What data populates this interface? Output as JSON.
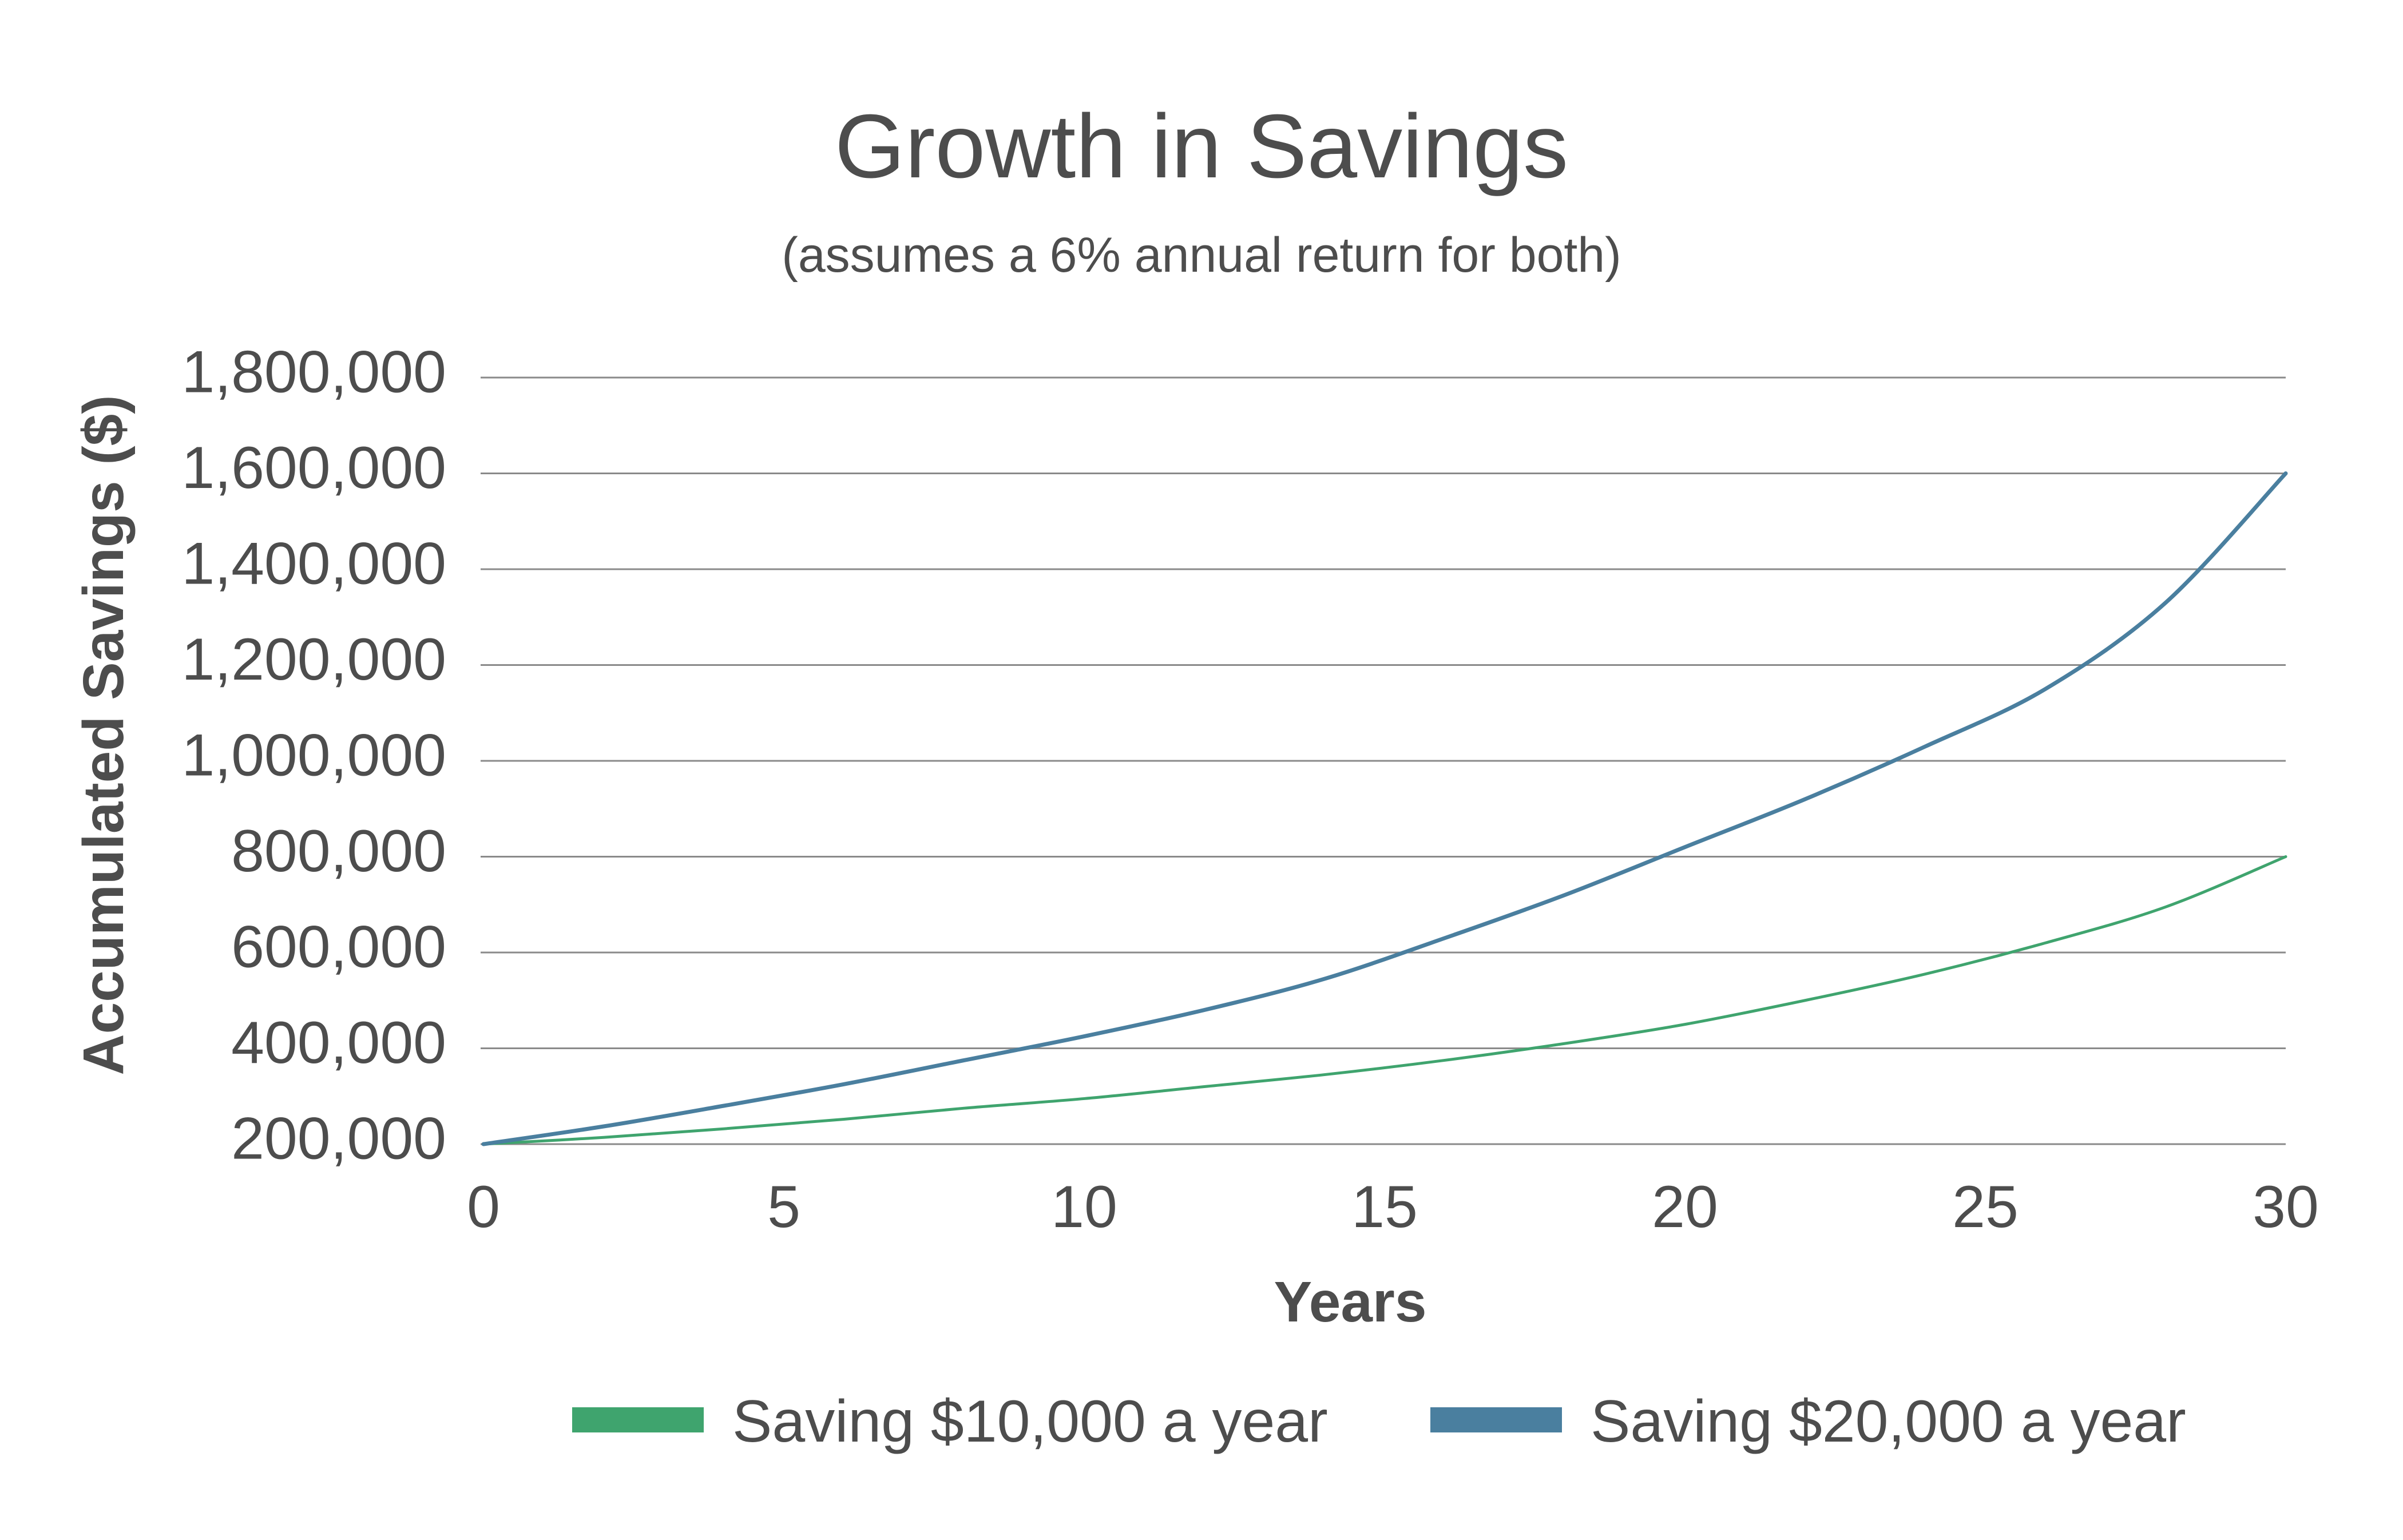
{
  "chart_data": {
    "type": "line",
    "title": "Growth in Savings",
    "subtitle": "(assumes a 6% annual return for both)",
    "xlabel": "Years",
    "ylabel": "Accumulated Savings ($)",
    "xlim": [
      0,
      30
    ],
    "ylim": [
      200000,
      1800000
    ],
    "x_ticks": [
      0,
      5,
      10,
      15,
      20,
      25,
      30
    ],
    "x_tick_labels": [
      "0",
      "5",
      "10",
      "15",
      "20",
      "25",
      "30"
    ],
    "y_ticks": [
      200000,
      400000,
      600000,
      800000,
      1000000,
      1200000,
      1400000,
      1600000,
      1800000
    ],
    "y_tick_labels": [
      "200,000",
      "400,000",
      "600,000",
      "800,000",
      "1,000,000",
      "1,200,000",
      "1,400,000",
      "1,600,000",
      "1,800,000"
    ],
    "grid": true,
    "legend_position": "bottom",
    "x": [
      0,
      2,
      4,
      6,
      8,
      10,
      12,
      14,
      16,
      18,
      20,
      22,
      24,
      26,
      28,
      30
    ],
    "series": [
      {
        "name": "Saving $10,000 a year",
        "color": "#3fa46e",
        "values": [
          200000,
          214000,
          232000,
          252000,
          275000,
          295000,
          320000,
          345000,
          375000,
          410000,
          450000,
          500000,
          555000,
          620000,
          695000,
          800000
        ]
      },
      {
        "name": "Saving $20,000 a year",
        "color": "#4a7f9f",
        "values": [
          200000,
          237000,
          280000,
          325000,
          375000,
          425000,
          480000,
          545000,
          630000,
          720000,
          820000,
          920000,
          1030000,
          1150000,
          1330000,
          1600000
        ]
      }
    ]
  }
}
